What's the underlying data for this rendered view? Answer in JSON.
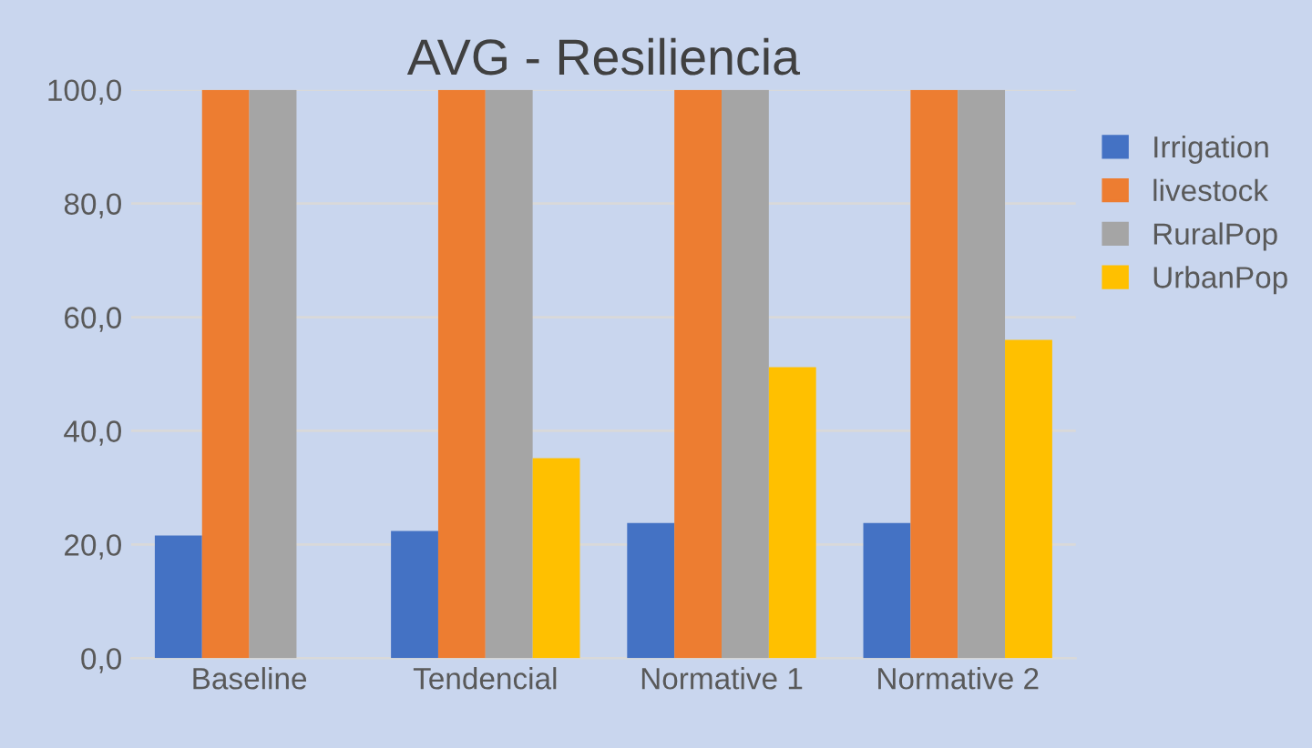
{
  "chart_data": {
    "type": "bar",
    "title": "AVG - Resiliencia",
    "categories": [
      "Baseline",
      "Tendencial",
      "Normative 1",
      "Normative 2"
    ],
    "series": [
      {
        "name": "Irrigation",
        "color": "#4472c4",
        "values": [
          21.6,
          22.4,
          23.8,
          23.8
        ]
      },
      {
        "name": "livestock",
        "color": "#ed7d31",
        "values": [
          100,
          100,
          100,
          100
        ]
      },
      {
        "name": "RuralPop",
        "color": "#a5a5a5",
        "values": [
          100,
          100,
          100,
          100
        ]
      },
      {
        "name": "UrbanPop",
        "color": "#ffc000",
        "values": [
          0,
          35.2,
          51.2,
          56.0
        ]
      }
    ],
    "ylim": [
      0,
      100
    ],
    "yticks": [
      {
        "value": 0,
        "label": "0,0"
      },
      {
        "value": 20,
        "label": "20,0"
      },
      {
        "value": 40,
        "label": "40,0"
      },
      {
        "value": 60,
        "label": "60,0"
      },
      {
        "value": 80,
        "label": "80,0"
      },
      {
        "value": 100,
        "label": "100,0"
      }
    ],
    "grid": "y",
    "legend": "right"
  }
}
